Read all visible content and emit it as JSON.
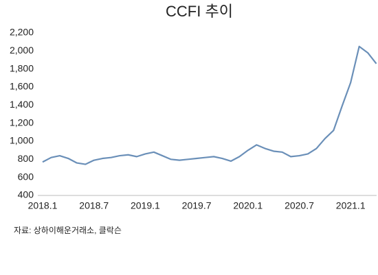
{
  "chart_data": {
    "type": "line",
    "title": "CCFI 추이",
    "categories": [
      "2018.1",
      null,
      null,
      null,
      null,
      null,
      "2018.7",
      null,
      null,
      null,
      null,
      null,
      "2019.1",
      null,
      null,
      null,
      null,
      null,
      "2019.7",
      null,
      null,
      null,
      null,
      null,
      "2020.1",
      null,
      null,
      null,
      null,
      null,
      "2020.7",
      null,
      null,
      null,
      null,
      null,
      "2021.1",
      null,
      null,
      null
    ],
    "series": [
      {
        "name": "CCFI",
        "color": "#6a8fb8",
        "values": [
          770,
          820,
          840,
          810,
          760,
          745,
          790,
          810,
          820,
          840,
          850,
          830,
          860,
          880,
          840,
          800,
          790,
          800,
          810,
          820,
          830,
          810,
          780,
          830,
          900,
          960,
          920,
          890,
          880,
          830,
          840,
          860,
          920,
          1030,
          1120,
          1390,
          1650,
          2050,
          1980,
          1860
        ]
      }
    ],
    "ylim": [
      400,
      2200
    ],
    "yticks": [
      400,
      600,
      800,
      {
        "value": 1000,
        "label": "1,000"
      },
      {
        "value": 1200,
        "label": "1,200"
      },
      {
        "value": 1400,
        "label": "1,400"
      },
      {
        "value": 1600,
        "label": "1,600"
      },
      {
        "value": 1800,
        "label": "1,800"
      },
      {
        "value": 2000,
        "label": "2,000"
      },
      {
        "value": 2200,
        "label": "2,200"
      }
    ],
    "grid": false,
    "source": "자료: 상하이해운거래소, 클락슨"
  }
}
